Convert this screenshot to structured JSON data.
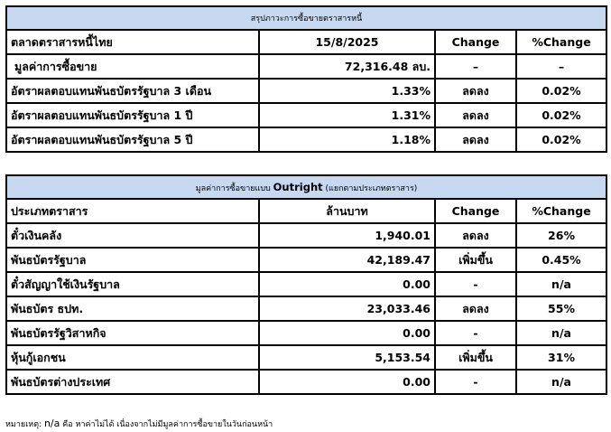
{
  "summary": {
    "title": "สรุปภาวะการซื้อขายตราสารหนี้",
    "col_headers": [
      "ตลาดตราสารหนี้ไทย",
      "15/8/2025",
      "Change",
      "%Change"
    ],
    "rows": [
      {
        "label": "มูลค่าการซื้อขาย",
        "value": "72,316.48 ลบ.",
        "change": "–",
        "pct": "–"
      },
      {
        "label": "อัตราผลตอบแทนพันธบัตรรัฐบาล 3 เดือน",
        "value": "1.33%",
        "change": "ลดลง",
        "pct": "0.02%"
      },
      {
        "label": "อัตราผลตอบแทนพันธบัตรรัฐบาล 1 ปี",
        "value": "1.31%",
        "change": "ลดลง",
        "pct": "0.02%"
      },
      {
        "label": "อัตราผลตอบแทนพันธบัตรรัฐบาล 5 ปี",
        "value": "1.18%",
        "change": "ลดลง",
        "pct": "0.02%"
      }
    ]
  },
  "outright": {
    "title_prefix": "มูลค่าการซื้อขายแบบ ",
    "title_en": "Outright",
    "title_suffix": " (แยกตามประเภทตราสาร)",
    "col_headers": [
      "ประเภทตราสาร",
      "ล้านบาท",
      "Change",
      "%Change"
    ],
    "rows": [
      {
        "label": "ตั๋วเงินคลัง",
        "value": "1,940.01",
        "change": "ลดลง",
        "pct": "26%"
      },
      {
        "label": "พันธบัตรรัฐบาล",
        "value": "42,189.47",
        "change": "เพิ่มขึ้น",
        "pct": "0.45%"
      },
      {
        "label": "ตั๋วสัญญาใช้เงินรัฐบาล",
        "value": "0.00",
        "change": "-",
        "pct": "n/a"
      },
      {
        "label": "พันธบัตร ธปท.",
        "value": "23,033.46",
        "change": "ลดลง",
        "pct": "55%"
      },
      {
        "label": "พันธบัตรรัฐวิสาหกิจ",
        "value": "0.00",
        "change": "-",
        "pct": "n/a"
      },
      {
        "label": "หุ้นกู้เอกชน",
        "value": "5,153.54",
        "change": "เพิ่มขึ้น",
        "pct": "31%"
      },
      {
        "label": "พันธบัตรต่างประเทศ",
        "value": "0.00",
        "change": "-",
        "pct": "n/a"
      }
    ]
  },
  "note": {
    "prefix": "หมายเหตุ: ",
    "na": "n/a",
    "text": " คือ หาค่าไม่ได้ เนื่องจากไม่มีมูลค่าการซื้อขายในวันก่อนหน้า"
  }
}
